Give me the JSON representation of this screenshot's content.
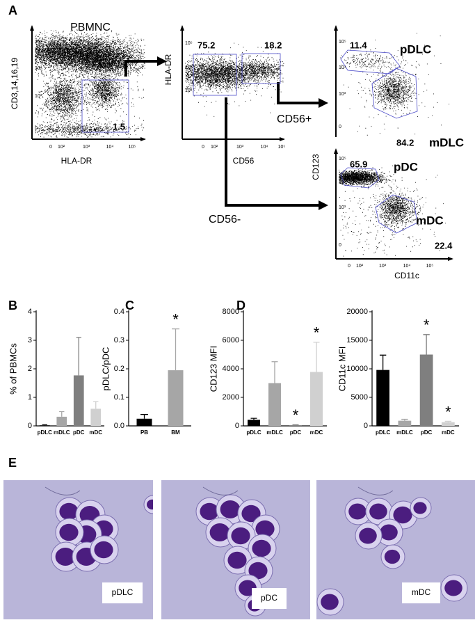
{
  "panel_labels": [
    "A",
    "B",
    "C",
    "D",
    "E"
  ],
  "flow": {
    "plots": [
      {
        "title": "PBMNC",
        "x_label": "HLA-DR",
        "y_label": "CD3,14,16,19",
        "yticks": [
          "10⁵",
          "10⁴",
          "10³",
          "0"
        ],
        "xticks": [
          "0",
          "10²",
          "10³",
          "10⁴",
          "10⁵"
        ],
        "gates": [
          1.5
        ]
      },
      {
        "x_label": "CD56",
        "y_label": "HLA-DR",
        "yticks": [
          "10⁵",
          "10⁴",
          "10³"
        ],
        "xticks": [
          "0",
          "10²",
          "10³",
          "10⁴",
          "10⁵"
        ],
        "gates": [
          75.2,
          18.2
        ]
      },
      {
        "yticks": [
          "10⁵",
          "10⁴",
          "10³",
          "0"
        ],
        "gates": [
          11.4,
          84.2
        ],
        "populations": [
          "pDLC",
          "mDLC"
        ]
      },
      {
        "x_label": "CD11c",
        "y_label": "CD123",
        "yticks": [
          "10⁵",
          "10⁴",
          "10³",
          "0"
        ],
        "xticks": [
          "0",
          "10²",
          "10³",
          "10⁴",
          "10⁵"
        ],
        "gates": [
          65.9,
          22.4
        ],
        "populations": [
          "pDC",
          "mDC"
        ]
      }
    ],
    "arrow_labels": [
      "CD56+",
      "CD56-"
    ]
  },
  "chart_data": [
    {
      "type": "bar",
      "y_label": "% of PBMCs",
      "categories": [
        "pDLC",
        "mDLC",
        "pDC",
        "mDC"
      ],
      "values": [
        0.02,
        0.32,
        1.77,
        0.6
      ],
      "errors": [
        0.02,
        0.18,
        1.33,
        0.25
      ],
      "colors": [
        "#000000",
        "#a6a6a6",
        "#7f7f7f",
        "#d0d0d0"
      ],
      "ylim": [
        0,
        4
      ],
      "yticks": [
        0,
        1,
        2,
        3,
        4
      ]
    },
    {
      "type": "bar",
      "y_label": "pDLC/pDC",
      "categories": [
        "PB",
        "BM"
      ],
      "values": [
        0.025,
        0.195
      ],
      "errors": [
        0.015,
        0.145
      ],
      "colors": [
        "#000000",
        "#a6a6a6"
      ],
      "ylim": [
        0,
        0.4
      ],
      "yticks": [
        {
          "value": 0,
          "label": "0.0"
        },
        0.1,
        0.2,
        0.3,
        0.4
      ],
      "annotations": [
        {
          "text": "*",
          "category": "BM"
        }
      ]
    },
    {
      "type": "bar",
      "y_label": "CD123 MFI",
      "categories": [
        "pDLC",
        "mDLC",
        "pDC",
        "mDC"
      ],
      "values": [
        430,
        3000,
        50,
        3780
      ],
      "errors": [
        100,
        1500,
        30,
        2080
      ],
      "colors": [
        "#000000",
        "#a6a6a6",
        "#7f7f7f",
        "#d0d0d0"
      ],
      "ylim": [
        0,
        8000
      ],
      "yticks": [
        0,
        2000,
        4000,
        6000,
        8000
      ],
      "annotations": [
        {
          "text": "*",
          "category": "pDC"
        },
        {
          "text": "*",
          "category": "mDC"
        }
      ]
    },
    {
      "type": "bar",
      "y_label": "CD11c MFI",
      "categories": [
        "pDLC",
        "mDLC",
        "pDC",
        "mDC"
      ],
      "values": [
        9800,
        900,
        12500,
        650
      ],
      "errors": [
        2600,
        250,
        3500,
        150
      ],
      "colors": [
        "#000000",
        "#a6a6a6",
        "#7f7f7f",
        "#d0d0d0"
      ],
      "ylim": [
        0,
        20000
      ],
      "yticks": [
        0,
        5000,
        10000,
        15000,
        20000
      ],
      "annotations": [
        {
          "text": "*",
          "category": "pDC"
        },
        {
          "text": "*",
          "category": "mDC"
        }
      ]
    }
  ],
  "micrographs": [
    {
      "label": "pDLC"
    },
    {
      "label": "pDC"
    },
    {
      "label": "mDC"
    }
  ]
}
